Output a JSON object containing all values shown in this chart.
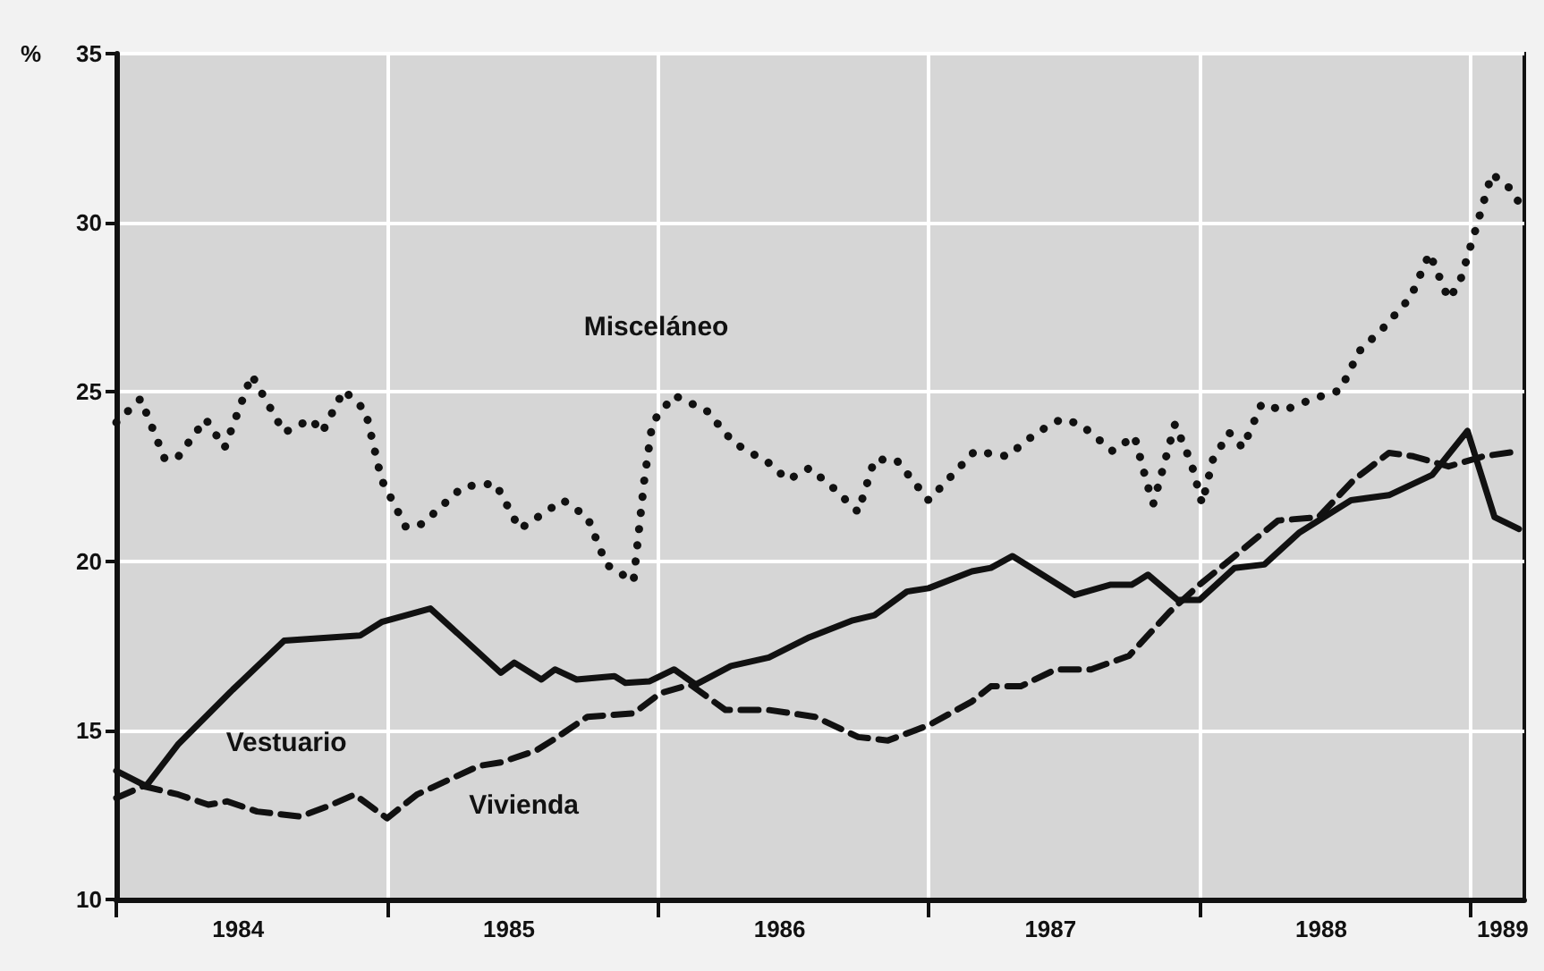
{
  "chart_data": {
    "type": "line",
    "ylabel": "%",
    "xlim": [
      1984,
      1989.2
    ],
    "xticks": [
      {
        "value": 1984,
        "label": null
      },
      {
        "value": 1985,
        "label": null
      },
      {
        "value": 1986,
        "label": null
      },
      {
        "value": 1987,
        "label": null
      },
      {
        "value": 1988,
        "label": null
      },
      {
        "value": 1989,
        "label": null
      },
      {
        "value": 1984.45,
        "label": "1984"
      },
      {
        "value": 1985.45,
        "label": "1985"
      },
      {
        "value": 1986.45,
        "label": "1986"
      },
      {
        "value": 1987.45,
        "label": "1987"
      },
      {
        "value": 1988.45,
        "label": "1988"
      },
      {
        "value": 1989.12,
        "label": "1989"
      }
    ],
    "ylim": [
      10,
      35
    ],
    "yticks": [
      10,
      15,
      20,
      25,
      30,
      35
    ],
    "grid": true,
    "legend": false,
    "marker": "none",
    "series": [
      {
        "name": "Vestuario",
        "color": "#111111",
        "line_style": "solid",
        "x": [
          1984.0,
          1984.11,
          1984.23,
          1984.43,
          1984.62,
          1984.9,
          1984.98,
          1985.16,
          1985.42,
          1985.47,
          1985.57,
          1985.62,
          1985.7,
          1985.84,
          1985.88,
          1985.97,
          1986.06,
          1986.14,
          1986.27,
          1986.41,
          1986.56,
          1986.72,
          1986.8,
          1986.92,
          1987.0,
          1987.16,
          1987.23,
          1987.31,
          1987.4,
          1987.54,
          1987.67,
          1987.75,
          1987.81,
          1987.92,
          1988.0,
          1988.13,
          1988.24,
          1988.37,
          1988.56,
          1988.7,
          1988.86,
          1988.99,
          1989.09,
          1989.18
        ],
        "values": [
          13.8,
          13.35,
          14.6,
          16.2,
          17.65,
          17.8,
          18.2,
          18.6,
          16.7,
          17.0,
          16.5,
          16.8,
          16.5,
          16.6,
          16.4,
          16.45,
          16.8,
          16.35,
          16.9,
          17.15,
          17.75,
          18.25,
          18.4,
          19.1,
          19.2,
          19.7,
          19.8,
          20.15,
          19.7,
          19.0,
          19.3,
          19.3,
          19.6,
          18.85,
          18.85,
          19.8,
          19.9,
          20.85,
          21.8,
          21.95,
          22.55,
          23.85,
          21.3,
          20.95
        ]
      },
      {
        "name": "Vivienda",
        "color": "#111111",
        "line_style": "dashed",
        "x": [
          1984.0,
          1984.1,
          1984.23,
          1984.34,
          1984.41,
          1984.52,
          1984.68,
          1984.78,
          1984.88,
          1985.0,
          1985.11,
          1985.34,
          1985.42,
          1985.55,
          1985.61,
          1985.74,
          1985.91,
          1986.01,
          1986.12,
          1986.25,
          1986.41,
          1986.58,
          1986.74,
          1986.85,
          1987.0,
          1987.16,
          1987.23,
          1987.34,
          1987.47,
          1987.6,
          1987.74,
          1987.89,
          1988.0,
          1988.13,
          1988.29,
          1988.44,
          1988.57,
          1988.7,
          1988.79,
          1988.92,
          1989.05,
          1989.18
        ],
        "values": [
          13.0,
          13.35,
          13.1,
          12.8,
          12.9,
          12.6,
          12.45,
          12.75,
          13.1,
          12.4,
          13.1,
          13.95,
          14.05,
          14.4,
          14.7,
          15.4,
          15.5,
          16.1,
          16.35,
          15.6,
          15.6,
          15.4,
          14.8,
          14.7,
          15.15,
          15.85,
          16.3,
          16.3,
          16.8,
          16.8,
          17.2,
          18.5,
          19.3,
          20.15,
          21.2,
          21.3,
          22.4,
          23.2,
          23.1,
          22.8,
          23.1,
          23.25
        ]
      },
      {
        "name": "Misceláneo",
        "color": "#111111",
        "line_style": "dotted",
        "x": [
          1984.0,
          1984.09,
          1984.18,
          1984.23,
          1984.33,
          1984.4,
          1984.5,
          1984.56,
          1984.62,
          1984.72,
          1984.76,
          1984.84,
          1984.92,
          1984.98,
          1985.07,
          1985.13,
          1985.28,
          1985.4,
          1985.49,
          1985.65,
          1985.74,
          1985.81,
          1985.91,
          1985.95,
          1985.98,
          1986.06,
          1986.18,
          1986.28,
          1986.41,
          1986.48,
          1986.56,
          1986.65,
          1986.74,
          1986.8,
          1986.88,
          1987.0,
          1987.17,
          1987.29,
          1987.4,
          1987.49,
          1987.56,
          1987.68,
          1987.76,
          1987.81,
          1987.83,
          1987.91,
          1987.97,
          1988.01,
          1988.05,
          1988.11,
          1988.16,
          1988.23,
          1988.31,
          1988.42,
          1988.52,
          1988.59,
          1988.68,
          1988.78,
          1988.85,
          1988.92,
          1988.96,
          1989.02,
          1989.08,
          1989.15,
          1989.18
        ],
        "values": [
          24.1,
          24.8,
          23.0,
          23.1,
          24.2,
          23.35,
          25.5,
          24.65,
          23.8,
          24.2,
          23.8,
          25.05,
          24.45,
          22.4,
          21.0,
          21.1,
          22.2,
          22.3,
          20.95,
          21.8,
          21.3,
          19.9,
          19.4,
          22.4,
          24.1,
          24.9,
          24.45,
          23.5,
          22.9,
          22.4,
          22.75,
          22.15,
          21.45,
          23.0,
          23.0,
          21.8,
          23.25,
          23.1,
          23.8,
          24.2,
          24.05,
          23.25,
          23.7,
          22.2,
          21.7,
          24.05,
          22.9,
          21.7,
          23.0,
          23.8,
          23.35,
          24.65,
          24.45,
          24.8,
          25.05,
          26.2,
          26.9,
          27.8,
          29.1,
          27.75,
          28.2,
          29.8,
          31.45,
          31.0,
          30.6
        ]
      }
    ]
  }
}
